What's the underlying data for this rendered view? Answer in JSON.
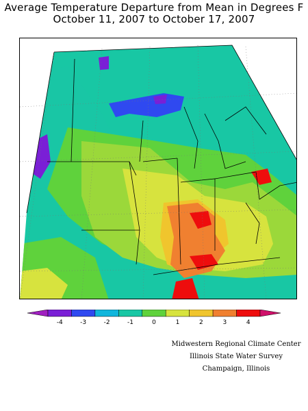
{
  "title": {
    "line1": "Average Temperature Departure from Mean in Degrees F",
    "line2": "October 11, 2007 to October 17, 2007"
  },
  "legend": {
    "tick_labels": [
      "-4",
      "-3",
      "-2",
      "-1",
      "0",
      "1",
      "2",
      "3",
      "4"
    ],
    "colors": [
      "#7a1fd6",
      "#2f49f0",
      "#10b6dc",
      "#18c7a4",
      "#5fd23c",
      "#d7e33e",
      "#f0c52d",
      "#f08030",
      "#ee0d0d"
    ],
    "end_left_color": "#a020c0",
    "end_right_color": "#d0106a"
  },
  "credits": [
    "Midwestern Regional Climate Center",
    "Illinois State Water Survey",
    "Champaign, Illinois"
  ]
}
